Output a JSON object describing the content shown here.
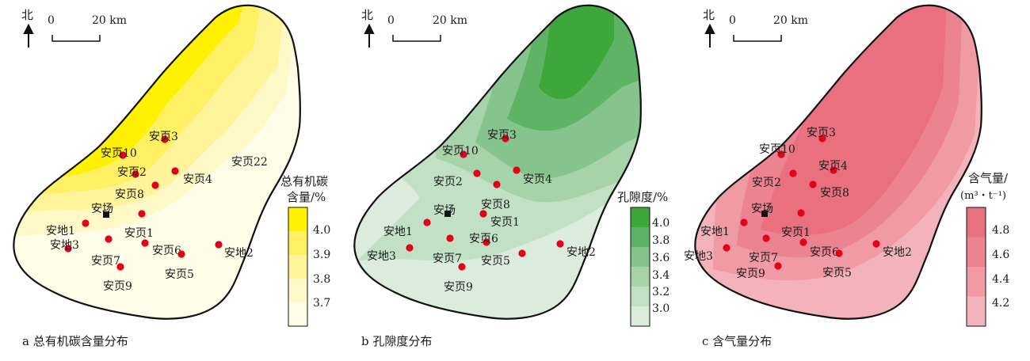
{
  "panels": [
    {
      "caption": "a 总有机碳含量分布",
      "north": "北",
      "scale": {
        "start": "0",
        "end": "20 km"
      },
      "legend": {
        "title_line1": "总有机碳",
        "title_line2": "含量/%",
        "ticks": [
          "4.0",
          "3.9",
          "3.8",
          "3.7"
        ]
      },
      "color_scheme": [
        "#fffde8",
        "#fff9c8",
        "#fff49a",
        "#fff064",
        "#fff200"
      ],
      "wells": [
        "安页3",
        "安页10",
        "安页2",
        "安页4",
        "安页8",
        "安页22",
        "安场",
        "安页1",
        "安地1",
        "安地3",
        "安页7",
        "安页6",
        "安地2",
        "安页5",
        "安页9"
      ]
    },
    {
      "caption": "b 孔隙度分布",
      "north": "北",
      "scale": {
        "start": "0",
        "end": "20 km"
      },
      "legend": {
        "title_line1": "孔隙度/%",
        "title_line2": "",
        "ticks": [
          "4.0",
          "3.8",
          "3.6",
          "3.4",
          "3.2",
          "3.0"
        ]
      },
      "color_scheme": [
        "#dcecdc",
        "#c2e0c4",
        "#a6d3aa",
        "#86c48d",
        "#5fb365",
        "#3ea63a"
      ],
      "wells": [
        "安页3",
        "安页10",
        "安页2",
        "安页4",
        "安页8",
        "安场",
        "安页1",
        "安地1",
        "安页6",
        "安地3",
        "安页7",
        "安页5",
        "安地2",
        "安页9"
      ]
    },
    {
      "caption": "c 含气量分布",
      "north": "北",
      "scale": {
        "start": "0",
        "end": "20 km"
      },
      "legend": {
        "title_line1": "含气量/",
        "title_line2": "(m³・t⁻¹)",
        "ticks": [
          "4.8",
          "4.6",
          "4.4",
          "4.2"
        ]
      },
      "color_scheme": [
        "#f4b3bb",
        "#f09aa4",
        "#ec8390",
        "#e8707f"
      ],
      "wells": [
        "安页3",
        "安页10",
        "安页4",
        "安页2",
        "安页8",
        "安场",
        "安页1",
        "安地1",
        "安地3",
        "安页7",
        "安页6",
        "安页9",
        "安页5",
        "安地2"
      ]
    }
  ]
}
